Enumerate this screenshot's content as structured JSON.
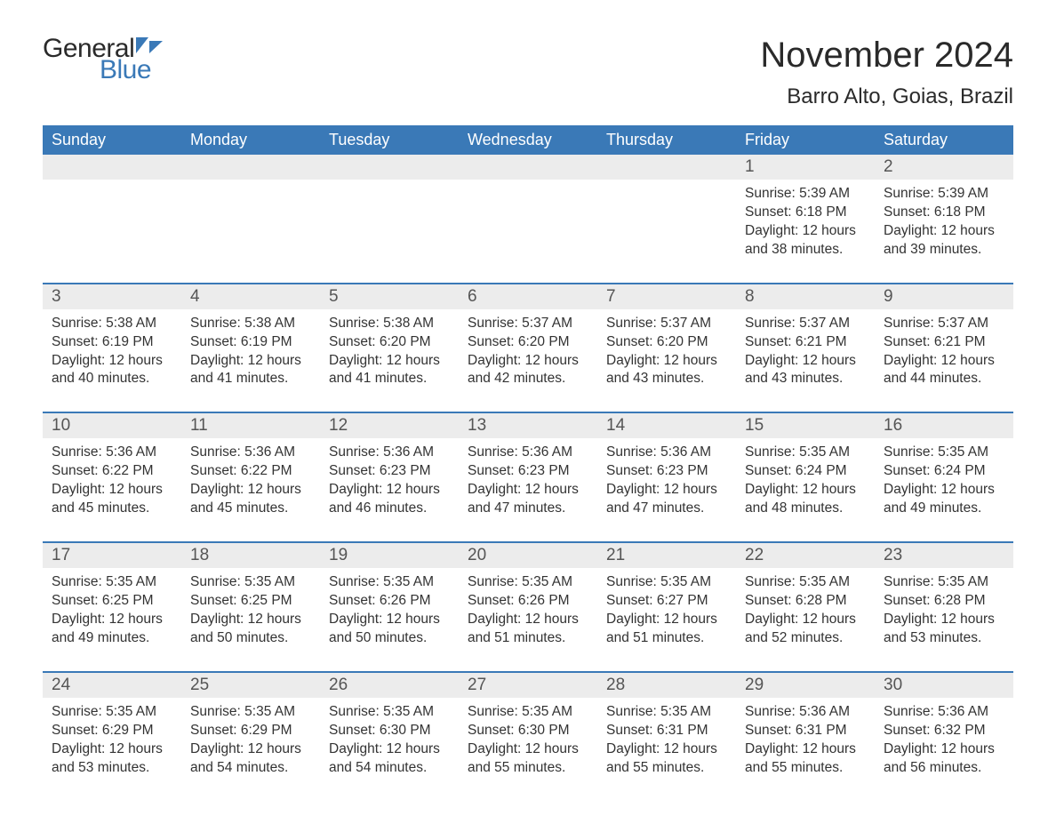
{
  "brand": {
    "general": "General",
    "blue": "Blue",
    "flag_color": "#3a79b7"
  },
  "title": "November 2024",
  "location": "Barro Alto, Goias, Brazil",
  "colors": {
    "header_bg": "#3a79b7",
    "header_text": "#ffffff",
    "daynum_bg": "#ececec",
    "week_divider": "#3a79b7",
    "body_text": "#333333",
    "title_text": "#2a2a2a"
  },
  "typography": {
    "title_fontsize": 40,
    "location_fontsize": 24,
    "weekday_fontsize": 18,
    "daynum_fontsize": 19,
    "body_fontsize": 15.5,
    "logo_fontsize": 30
  },
  "weekdays": [
    "Sunday",
    "Monday",
    "Tuesday",
    "Wednesday",
    "Thursday",
    "Friday",
    "Saturday"
  ],
  "weeks": [
    [
      {
        "num": "",
        "empty": true
      },
      {
        "num": "",
        "empty": true
      },
      {
        "num": "",
        "empty": true
      },
      {
        "num": "",
        "empty": true
      },
      {
        "num": "",
        "empty": true
      },
      {
        "num": "1",
        "sunrise": "Sunrise: 5:39 AM",
        "sunset": "Sunset: 6:18 PM",
        "daylight1": "Daylight: 12 hours",
        "daylight2": "and 38 minutes."
      },
      {
        "num": "2",
        "sunrise": "Sunrise: 5:39 AM",
        "sunset": "Sunset: 6:18 PM",
        "daylight1": "Daylight: 12 hours",
        "daylight2": "and 39 minutes."
      }
    ],
    [
      {
        "num": "3",
        "sunrise": "Sunrise: 5:38 AM",
        "sunset": "Sunset: 6:19 PM",
        "daylight1": "Daylight: 12 hours",
        "daylight2": "and 40 minutes."
      },
      {
        "num": "4",
        "sunrise": "Sunrise: 5:38 AM",
        "sunset": "Sunset: 6:19 PM",
        "daylight1": "Daylight: 12 hours",
        "daylight2": "and 41 minutes."
      },
      {
        "num": "5",
        "sunrise": "Sunrise: 5:38 AM",
        "sunset": "Sunset: 6:20 PM",
        "daylight1": "Daylight: 12 hours",
        "daylight2": "and 41 minutes."
      },
      {
        "num": "6",
        "sunrise": "Sunrise: 5:37 AM",
        "sunset": "Sunset: 6:20 PM",
        "daylight1": "Daylight: 12 hours",
        "daylight2": "and 42 minutes."
      },
      {
        "num": "7",
        "sunrise": "Sunrise: 5:37 AM",
        "sunset": "Sunset: 6:20 PM",
        "daylight1": "Daylight: 12 hours",
        "daylight2": "and 43 minutes."
      },
      {
        "num": "8",
        "sunrise": "Sunrise: 5:37 AM",
        "sunset": "Sunset: 6:21 PM",
        "daylight1": "Daylight: 12 hours",
        "daylight2": "and 43 minutes."
      },
      {
        "num": "9",
        "sunrise": "Sunrise: 5:37 AM",
        "sunset": "Sunset: 6:21 PM",
        "daylight1": "Daylight: 12 hours",
        "daylight2": "and 44 minutes."
      }
    ],
    [
      {
        "num": "10",
        "sunrise": "Sunrise: 5:36 AM",
        "sunset": "Sunset: 6:22 PM",
        "daylight1": "Daylight: 12 hours",
        "daylight2": "and 45 minutes."
      },
      {
        "num": "11",
        "sunrise": "Sunrise: 5:36 AM",
        "sunset": "Sunset: 6:22 PM",
        "daylight1": "Daylight: 12 hours",
        "daylight2": "and 45 minutes."
      },
      {
        "num": "12",
        "sunrise": "Sunrise: 5:36 AM",
        "sunset": "Sunset: 6:23 PM",
        "daylight1": "Daylight: 12 hours",
        "daylight2": "and 46 minutes."
      },
      {
        "num": "13",
        "sunrise": "Sunrise: 5:36 AM",
        "sunset": "Sunset: 6:23 PM",
        "daylight1": "Daylight: 12 hours",
        "daylight2": "and 47 minutes."
      },
      {
        "num": "14",
        "sunrise": "Sunrise: 5:36 AM",
        "sunset": "Sunset: 6:23 PM",
        "daylight1": "Daylight: 12 hours",
        "daylight2": "and 47 minutes."
      },
      {
        "num": "15",
        "sunrise": "Sunrise: 5:35 AM",
        "sunset": "Sunset: 6:24 PM",
        "daylight1": "Daylight: 12 hours",
        "daylight2": "and 48 minutes."
      },
      {
        "num": "16",
        "sunrise": "Sunrise: 5:35 AM",
        "sunset": "Sunset: 6:24 PM",
        "daylight1": "Daylight: 12 hours",
        "daylight2": "and 49 minutes."
      }
    ],
    [
      {
        "num": "17",
        "sunrise": "Sunrise: 5:35 AM",
        "sunset": "Sunset: 6:25 PM",
        "daylight1": "Daylight: 12 hours",
        "daylight2": "and 49 minutes."
      },
      {
        "num": "18",
        "sunrise": "Sunrise: 5:35 AM",
        "sunset": "Sunset: 6:25 PM",
        "daylight1": "Daylight: 12 hours",
        "daylight2": "and 50 minutes."
      },
      {
        "num": "19",
        "sunrise": "Sunrise: 5:35 AM",
        "sunset": "Sunset: 6:26 PM",
        "daylight1": "Daylight: 12 hours",
        "daylight2": "and 50 minutes."
      },
      {
        "num": "20",
        "sunrise": "Sunrise: 5:35 AM",
        "sunset": "Sunset: 6:26 PM",
        "daylight1": "Daylight: 12 hours",
        "daylight2": "and 51 minutes."
      },
      {
        "num": "21",
        "sunrise": "Sunrise: 5:35 AM",
        "sunset": "Sunset: 6:27 PM",
        "daylight1": "Daylight: 12 hours",
        "daylight2": "and 51 minutes."
      },
      {
        "num": "22",
        "sunrise": "Sunrise: 5:35 AM",
        "sunset": "Sunset: 6:28 PM",
        "daylight1": "Daylight: 12 hours",
        "daylight2": "and 52 minutes."
      },
      {
        "num": "23",
        "sunrise": "Sunrise: 5:35 AM",
        "sunset": "Sunset: 6:28 PM",
        "daylight1": "Daylight: 12 hours",
        "daylight2": "and 53 minutes."
      }
    ],
    [
      {
        "num": "24",
        "sunrise": "Sunrise: 5:35 AM",
        "sunset": "Sunset: 6:29 PM",
        "daylight1": "Daylight: 12 hours",
        "daylight2": "and 53 minutes."
      },
      {
        "num": "25",
        "sunrise": "Sunrise: 5:35 AM",
        "sunset": "Sunset: 6:29 PM",
        "daylight1": "Daylight: 12 hours",
        "daylight2": "and 54 minutes."
      },
      {
        "num": "26",
        "sunrise": "Sunrise: 5:35 AM",
        "sunset": "Sunset: 6:30 PM",
        "daylight1": "Daylight: 12 hours",
        "daylight2": "and 54 minutes."
      },
      {
        "num": "27",
        "sunrise": "Sunrise: 5:35 AM",
        "sunset": "Sunset: 6:30 PM",
        "daylight1": "Daylight: 12 hours",
        "daylight2": "and 55 minutes."
      },
      {
        "num": "28",
        "sunrise": "Sunrise: 5:35 AM",
        "sunset": "Sunset: 6:31 PM",
        "daylight1": "Daylight: 12 hours",
        "daylight2": "and 55 minutes."
      },
      {
        "num": "29",
        "sunrise": "Sunrise: 5:36 AM",
        "sunset": "Sunset: 6:31 PM",
        "daylight1": "Daylight: 12 hours",
        "daylight2": "and 55 minutes."
      },
      {
        "num": "30",
        "sunrise": "Sunrise: 5:36 AM",
        "sunset": "Sunset: 6:32 PM",
        "daylight1": "Daylight: 12 hours",
        "daylight2": "and 56 minutes."
      }
    ]
  ]
}
